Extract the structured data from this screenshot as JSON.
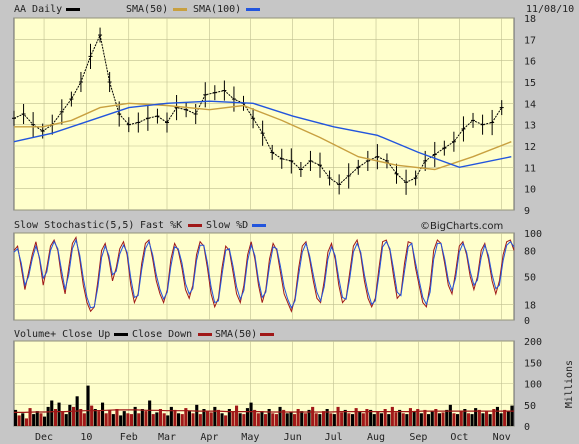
{
  "header": {
    "ticker_label": "AA Daily",
    "sma50_label": "SMA(50)",
    "sma100_label": "SMA(100)",
    "date": "11/08/10"
  },
  "stoch_header": {
    "title": "Slow Stochastic(5,5)",
    "fast_label": "Fast %K",
    "slow_label": "Slow %D",
    "watermark": "©BigCharts.com"
  },
  "volume_header": {
    "up_label": "Volume+ Close Up",
    "down_label": "Close Down",
    "sma_label": "SMA(50)",
    "units": "Millions"
  },
  "colors": {
    "panel_bg": "#ffffcc",
    "price": "#000000",
    "sma50": "#c8a040",
    "sma100": "#2255dd",
    "fast_k": "#a01818",
    "slow_d": "#2255dd",
    "vol_up": "#000000",
    "vol_down": "#a01818",
    "vol_sma": "#a01818"
  },
  "chart_data": [
    {
      "type": "line",
      "panel": "price",
      "ylim": [
        9,
        18
      ],
      "yticks": [
        9,
        10,
        11,
        12,
        13,
        14,
        15,
        16,
        17,
        18
      ],
      "x_labels": [
        "Dec",
        "10",
        "Feb",
        "Mar",
        "Apr",
        "May",
        "Jun",
        "Jul",
        "Aug",
        "Sep",
        "Oct",
        "Nov"
      ],
      "x_ticks": [
        "2009-12-01",
        "2010-01-01",
        "2010-02-01",
        "2010-03-01",
        "2010-04-01",
        "2010-05-01",
        "2010-06-01",
        "2010-07-01",
        "2010-08-01",
        "2010-09-01",
        "2010-10-01",
        "2010-11-01"
      ],
      "series": [
        {
          "name": "AA Daily",
          "style": "ohlc",
          "points": [
            [
              "2009-11-09",
              13.3
            ],
            [
              "2009-11-16",
              13.5
            ],
            [
              "2009-11-23",
              13.0
            ],
            [
              "2009-11-30",
              12.7
            ],
            [
              "2009-12-07",
              13.0
            ],
            [
              "2009-12-14",
              13.6
            ],
            [
              "2009-12-21",
              14.2
            ],
            [
              "2009-12-28",
              15.0
            ],
            [
              "2010-01-04",
              16.2
            ],
            [
              "2010-01-11",
              17.2
            ],
            [
              "2010-01-18",
              15.0
            ],
            [
              "2010-01-25",
              13.5
            ],
            [
              "2010-02-01",
              13.0
            ],
            [
              "2010-02-08",
              13.1
            ],
            [
              "2010-02-15",
              13.3
            ],
            [
              "2010-02-22",
              13.4
            ],
            [
              "2010-03-01",
              13.1
            ],
            [
              "2010-03-08",
              13.8
            ],
            [
              "2010-03-15",
              13.7
            ],
            [
              "2010-03-22",
              13.5
            ],
            [
              "2010-03-29",
              14.4
            ],
            [
              "2010-04-05",
              14.5
            ],
            [
              "2010-04-12",
              14.6
            ],
            [
              "2010-04-19",
              14.2
            ],
            [
              "2010-04-26",
              14.0
            ],
            [
              "2010-05-03",
              13.3
            ],
            [
              "2010-05-10",
              12.6
            ],
            [
              "2010-05-17",
              11.7
            ],
            [
              "2010-05-24",
              11.4
            ],
            [
              "2010-05-31",
              11.3
            ],
            [
              "2010-06-07",
              10.9
            ],
            [
              "2010-06-14",
              11.3
            ],
            [
              "2010-06-21",
              11.1
            ],
            [
              "2010-06-28",
              10.5
            ],
            [
              "2010-07-05",
              10.2
            ],
            [
              "2010-07-12",
              10.6
            ],
            [
              "2010-07-19",
              11.0
            ],
            [
              "2010-07-26",
              11.3
            ],
            [
              "2010-08-02",
              11.5
            ],
            [
              "2010-08-09",
              11.3
            ],
            [
              "2010-08-16",
              10.7
            ],
            [
              "2010-08-23",
              10.3
            ],
            [
              "2010-08-30",
              10.5
            ],
            [
              "2010-09-06",
              11.3
            ],
            [
              "2010-09-13",
              11.6
            ],
            [
              "2010-09-20",
              11.9
            ],
            [
              "2010-09-27",
              12.2
            ],
            [
              "2010-10-04",
              12.8
            ],
            [
              "2010-10-11",
              13.2
            ],
            [
              "2010-10-18",
              13.0
            ],
            [
              "2010-10-25",
              13.1
            ],
            [
              "2010-11-01",
              13.8
            ]
          ]
        },
        {
          "name": "SMA(50)",
          "points": [
            [
              "2009-11-09",
              12.9
            ],
            [
              "2009-11-30",
              12.9
            ],
            [
              "2009-12-21",
              13.2
            ],
            [
              "2010-01-11",
              13.8
            ],
            [
              "2010-02-01",
              14.0
            ],
            [
              "2010-03-01",
              13.9
            ],
            [
              "2010-04-01",
              13.7
            ],
            [
              "2010-04-26",
              13.9
            ],
            [
              "2010-05-24",
              13.2
            ],
            [
              "2010-06-21",
              12.4
            ],
            [
              "2010-07-19",
              11.5
            ],
            [
              "2010-08-16",
              11.1
            ],
            [
              "2010-09-13",
              10.9
            ],
            [
              "2010-10-11",
              11.5
            ],
            [
              "2010-11-08",
              12.2
            ]
          ]
        },
        {
          "name": "SMA(100)",
          "points": [
            [
              "2009-11-09",
              12.2
            ],
            [
              "2009-12-07",
              12.6
            ],
            [
              "2010-01-04",
              13.2
            ],
            [
              "2010-02-01",
              13.8
            ],
            [
              "2010-03-01",
              14.0
            ],
            [
              "2010-04-01",
              14.1
            ],
            [
              "2010-05-03",
              14.0
            ],
            [
              "2010-06-01",
              13.4
            ],
            [
              "2010-07-01",
              12.9
            ],
            [
              "2010-08-02",
              12.5
            ],
            [
              "2010-09-01",
              11.7
            ],
            [
              "2010-10-01",
              11.0
            ],
            [
              "2010-11-08",
              11.5
            ]
          ]
        }
      ]
    },
    {
      "type": "line",
      "panel": "stochastic",
      "ylim": [
        0,
        100
      ],
      "yticks": [
        0,
        18,
        50,
        80,
        100
      ],
      "series": [
        {
          "name": "Fast %K",
          "values": [
            80,
            85,
            60,
            35,
            55,
            75,
            90,
            70,
            40,
            60,
            85,
            92,
            80,
            50,
            30,
            60,
            88,
            95,
            70,
            40,
            20,
            10,
            15,
            45,
            80,
            88,
            70,
            45,
            60,
            82,
            90,
            75,
            40,
            20,
            30,
            65,
            88,
            92,
            70,
            45,
            30,
            20,
            35,
            70,
            88,
            80,
            60,
            35,
            25,
            40,
            75,
            90,
            85,
            60,
            30,
            15,
            25,
            60,
            85,
            80,
            55,
            30,
            20,
            40,
            75,
            90,
            70,
            40,
            20,
            35,
            70,
            88,
            80,
            55,
            30,
            20,
            10,
            25,
            60,
            85,
            90,
            70,
            45,
            25,
            20,
            45,
            78,
            88,
            70,
            40,
            20,
            25,
            55,
            85,
            92,
            75,
            45,
            25,
            15,
            25,
            60,
            90,
            92,
            80,
            50,
            25,
            30,
            65,
            90,
            88,
            60,
            40,
            20,
            15,
            40,
            80,
            92,
            88,
            65,
            40,
            30,
            55,
            85,
            90,
            75,
            50,
            35,
            50,
            80,
            88,
            70,
            45,
            30,
            45,
            75,
            90,
            92,
            80
          ]
        },
        {
          "name": "Slow %D",
          "values": [
            78,
            82,
            65,
            40,
            50,
            70,
            85,
            72,
            48,
            55,
            80,
            90,
            82,
            58,
            35,
            52,
            82,
            92,
            75,
            48,
            26,
            14,
            15,
            38,
            72,
            85,
            74,
            52,
            56,
            76,
            86,
            78,
            48,
            26,
            28,
            58,
            82,
            90,
            75,
            52,
            35,
            24,
            32,
            62,
            84,
            82,
            66,
            42,
            30,
            36,
            68,
            86,
            86,
            66,
            38,
            20,
            22,
            52,
            80,
            82,
            62,
            38,
            24,
            34,
            68,
            86,
            74,
            46,
            26,
            32,
            62,
            84,
            82,
            62,
            38,
            24,
            14,
            22,
            52,
            78,
            88,
            74,
            52,
            32,
            22,
            38,
            70,
            84,
            74,
            48,
            26,
            24,
            48,
            78,
            88,
            78,
            52,
            32,
            18,
            22,
            52,
            84,
            90,
            82,
            58,
            32,
            28,
            56,
            84,
            88,
            66,
            46,
            26,
            18,
            32,
            70,
            88,
            88,
            70,
            46,
            34,
            48,
            78,
            88,
            78,
            56,
            40,
            46,
            72,
            86,
            74,
            52,
            36,
            40,
            68,
            86,
            90,
            84
          ]
        }
      ]
    },
    {
      "type": "bar",
      "panel": "volume",
      "ylabel": "Millions",
      "ylim": [
        0,
        200
      ],
      "yticks": [
        0,
        50,
        100,
        150,
        200
      ],
      "series": [
        {
          "name": "Volume",
          "values": [
            38,
            25,
            30,
            18,
            42,
            28,
            35,
            30,
            22,
            45,
            60,
            40,
            55,
            35,
            28,
            50,
            45,
            70,
            40,
            30,
            95,
            48,
            40,
            35,
            55,
            30,
            38,
            28,
            40,
            25,
            35,
            30,
            28,
            45,
            30,
            40,
            35,
            60,
            28,
            32,
            40,
            30,
            25,
            45,
            38,
            30,
            28,
            42,
            35,
            30,
            50,
            28,
            40,
            35,
            32,
            45,
            38,
            30,
            25,
            40,
            35,
            48,
            30,
            28,
            42,
            55,
            38,
            30,
            35,
            28,
            40,
            30,
            28,
            45,
            38,
            30,
            32,
            28,
            40,
            35,
            30,
            38,
            45,
            30,
            28,
            35,
            40,
            30,
            28,
            45,
            32,
            38,
            30,
            28,
            42,
            35,
            30,
            40,
            38,
            28,
            35,
            30,
            40,
            28,
            45,
            32,
            38,
            30,
            28,
            42,
            35,
            40,
            30,
            38,
            28,
            35,
            40,
            30,
            32,
            38,
            50,
            30,
            28,
            35,
            40,
            30,
            28,
            42,
            38,
            30,
            35,
            28,
            40,
            45,
            30,
            38,
            35,
            48
          ],
          "up": [
            1,
            0,
            1,
            0,
            0,
            1,
            1,
            0,
            1,
            1,
            1,
            0,
            1,
            0,
            1,
            1,
            0,
            1,
            0,
            0,
            1,
            0,
            1,
            0,
            1,
            0,
            0,
            1,
            0,
            1,
            1,
            0,
            0,
            1,
            0,
            1,
            0,
            1,
            0,
            1,
            0,
            0,
            1,
            1,
            0,
            1,
            0,
            0,
            1,
            0,
            1,
            0,
            1,
            0,
            0,
            1,
            0,
            1,
            0,
            1,
            0,
            0,
            1,
            0,
            1,
            1,
            0,
            0,
            1,
            0,
            1,
            0,
            0,
            1,
            0,
            1,
            1,
            0,
            0,
            1,
            0,
            1,
            0,
            0,
            1,
            0,
            1,
            0,
            1,
            0,
            0,
            1,
            0,
            1,
            0,
            1,
            0,
            0,
            1,
            1,
            0,
            1,
            0,
            1,
            0,
            0,
            1,
            0,
            1,
            0,
            1,
            0,
            1,
            0,
            1,
            1,
            0,
            1,
            0,
            1,
            1,
            0,
            1,
            0,
            1,
            0,
            1,
            1,
            0,
            1,
            0,
            1,
            0,
            1,
            1,
            0,
            1,
            1
          ]
        },
        {
          "name": "SMA(50)",
          "values": [
            32,
            32,
            33,
            33,
            34,
            34,
            35,
            36,
            36,
            37,
            38,
            38,
            38,
            37,
            37,
            36,
            36,
            36,
            35,
            35,
            35,
            34,
            34,
            34,
            34,
            33,
            33,
            33,
            33,
            33,
            33,
            33,
            34,
            34,
            34,
            34,
            34,
            34,
            34,
            34,
            35,
            35,
            35,
            35,
            35,
            35,
            35,
            35,
            35,
            35
          ]
        }
      ]
    }
  ]
}
